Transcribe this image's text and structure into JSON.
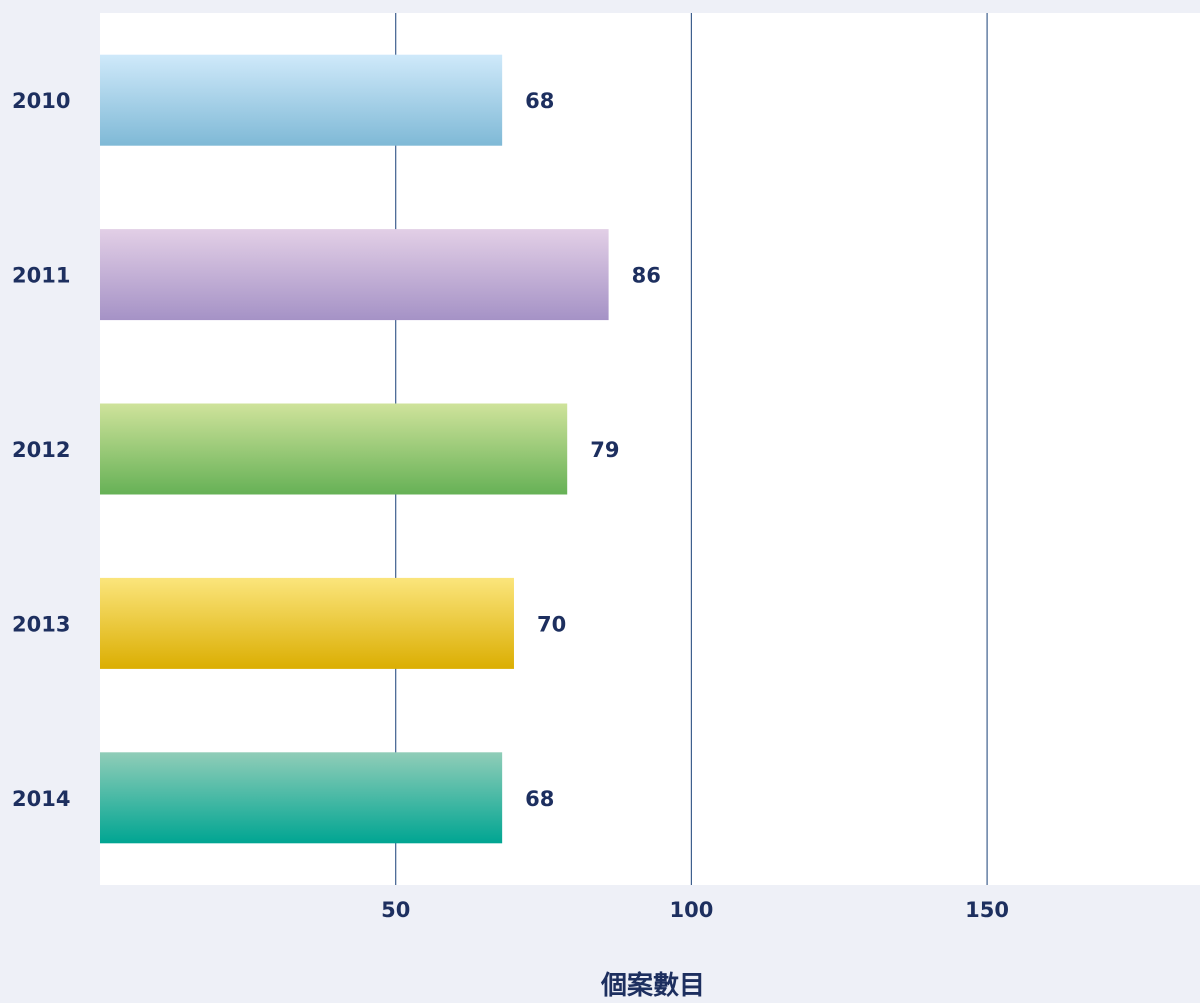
{
  "chart_data": {
    "type": "bar",
    "orientation": "horizontal",
    "categories": [
      "2010",
      "2011",
      "2012",
      "2013",
      "2014"
    ],
    "values": [
      68,
      86,
      79,
      70,
      68
    ],
    "value_labels": [
      "68",
      "86",
      "79",
      "70",
      "68"
    ],
    "xlabel": "個案數目",
    "ylabel": "",
    "xlim": [
      0,
      186
    ],
    "xticks": [
      50,
      100,
      150
    ],
    "xtick_labels": [
      "50",
      "100",
      "150"
    ],
    "grid": true,
    "legend": "none",
    "bar_colors": [
      [
        "#cfe9fa",
        "#7fb9d6"
      ],
      [
        "#e2cfe6",
        "#a592c6"
      ],
      [
        "#cfe39b",
        "#66b156"
      ],
      [
        "#fbe57c",
        "#dbae02"
      ],
      [
        "#90cdb8",
        "#00a592"
      ]
    ],
    "colors": {
      "background": "#eef0f7",
      "plot": "#ffffff",
      "grid": "#3e5f8e",
      "text": "#1d2f5f"
    }
  }
}
